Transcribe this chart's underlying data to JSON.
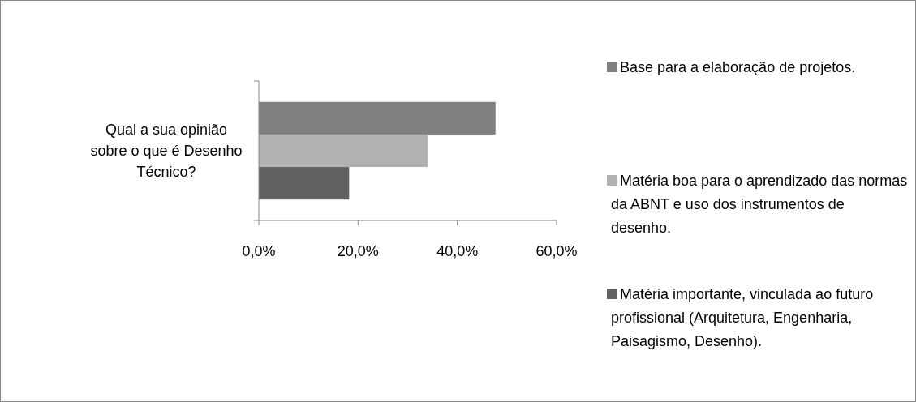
{
  "chart_data": {
    "type": "bar",
    "orientation": "horizontal",
    "categories": [
      "Qual a sua opinião sobre o que é Desenho Técnico?"
    ],
    "series": [
      {
        "name": "Base para a elaboração de projetos.",
        "color": "#808080",
        "values": [
          47.7
        ]
      },
      {
        "name": "Matéria boa para o aprendizado das normas da ABNT e uso dos instrumentos de desenho.",
        "color": "#b2b2b2",
        "values": [
          34.1
        ]
      },
      {
        "name": "Matéria importante, vinculada ao futuro profissional (Arquitetura, Engenharia, Paisagismo, Desenho).",
        "color": "#616161",
        "values": [
          18.2
        ]
      }
    ],
    "xlim": [
      0,
      60
    ],
    "xticks": [
      {
        "value": 0,
        "label": "0,0%"
      },
      {
        "value": 20,
        "label": "20,0%"
      },
      {
        "value": 40,
        "label": "40,0%"
      },
      {
        "value": 60,
        "label": "60,0%"
      }
    ],
    "grid": false,
    "legend": "right"
  }
}
